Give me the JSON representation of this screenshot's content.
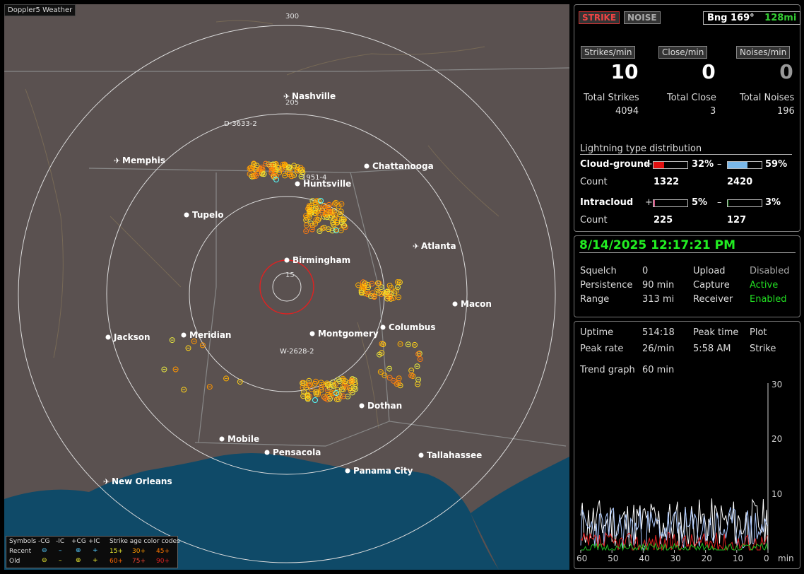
{
  "brand": "Doppler5 Weather",
  "ranges": {
    "r300": "300",
    "r205": "205",
    "r15": "15"
  },
  "cities": [
    {
      "name": "Nashville",
      "airport": true
    },
    {
      "name": "Memphis",
      "airport": true
    },
    {
      "name": "Chattanooga",
      "airport": false
    },
    {
      "name": "Huntsville",
      "airport": false
    },
    {
      "name": "Tupelo",
      "airport": false
    },
    {
      "name": "Birmingham",
      "airport": false
    },
    {
      "name": "Atlanta",
      "airport": true
    },
    {
      "name": "Macon",
      "airport": false
    },
    {
      "name": "Jackson",
      "airport": false
    },
    {
      "name": "Meridian",
      "airport": false
    },
    {
      "name": "Montgomery",
      "airport": false
    },
    {
      "name": "Columbus",
      "airport": false
    },
    {
      "name": "Dothan",
      "airport": false
    },
    {
      "name": "Mobile",
      "airport": false
    },
    {
      "name": "Pensacola",
      "airport": false
    },
    {
      "name": "Tallahassee",
      "airport": false
    },
    {
      "name": "Panama City",
      "airport": false
    },
    {
      "name": "New Orleans",
      "airport": true
    }
  ],
  "cells": {
    "c1": "D-3633-2",
    "c2": "1951-4",
    "c3": "W-2628-2"
  },
  "legend": {
    "symbols": "Symbols",
    "cg_minus": "-CG",
    "ic_minus": "-IC",
    "cg_plus": "+CG",
    "ic_plus": "+IC",
    "age_title": "Strike age color codes",
    "recent": "Recent",
    "old": "Old",
    "age": [
      "15+",
      "30+",
      "45+",
      "60+",
      "75+",
      "90+"
    ]
  },
  "header": {
    "strike": "STRIKE",
    "noise": "NOISE",
    "bearing": "Bng 169°",
    "distance": "128mi"
  },
  "rates": {
    "strikes_label": "Strikes/min",
    "close_label": "Close/min",
    "noises_label": "Noises/min",
    "strikes": "10",
    "close": "0",
    "noises": "0"
  },
  "totals": {
    "strikes_label": "Total Strikes",
    "close_label": "Total Close",
    "noises_label": "Total Noises",
    "strikes": "4094",
    "close": "3",
    "noises": "196"
  },
  "distribution": {
    "title": "Lightning type distribution",
    "cg_label": "Cloud-ground",
    "ic_label": "Intracloud",
    "count_label": "Count",
    "plus": "+",
    "minus": "–",
    "cg_pos_pct": "32%",
    "cg_neg_pct": "59%",
    "cg_pos_count": "1322",
    "cg_neg_count": "2420",
    "ic_pos_pct": "5%",
    "ic_neg_pct": "3%",
    "ic_pos_count": "225",
    "ic_neg_count": "127",
    "cg_pos": 0.32,
    "cg_neg": 0.59,
    "ic_pos": 0.05,
    "ic_neg": 0.03
  },
  "status": {
    "datetime": "8/14/2025 12:17:21 PM",
    "squelch_label": "Squelch",
    "squelch": "0",
    "persistence_label": "Persistence",
    "persistence": "90 min",
    "range_label": "Range",
    "range": "313 mi",
    "upload_label": "Upload",
    "upload": "Disabled",
    "capture_label": "Capture",
    "capture": "Active",
    "receiver_label": "Receiver",
    "receiver": "Enabled"
  },
  "stats": {
    "uptime_label": "Uptime",
    "uptime": "514:18",
    "peak_time_label": "Peak time",
    "peak_time": "5:58 AM",
    "plot_label": "Plot",
    "plot": "Strike",
    "peak_rate_label": "Peak rate",
    "peak_rate": "26/min",
    "trend_label": "Trend graph",
    "trend": "60 min"
  },
  "trend": {
    "x_ticks": [
      "60",
      "50",
      "40",
      "30",
      "20",
      "10",
      "0"
    ],
    "x_unit": "min",
    "y_ticks": [
      "30",
      "20",
      "10"
    ]
  },
  "colors": {
    "strike": "#d33",
    "green": "#33cc33",
    "cg_pos": "#e01010",
    "cg_neg": "#7ab8e8",
    "ic_pos": "#d05080",
    "ic_neg": "#20b020"
  }
}
